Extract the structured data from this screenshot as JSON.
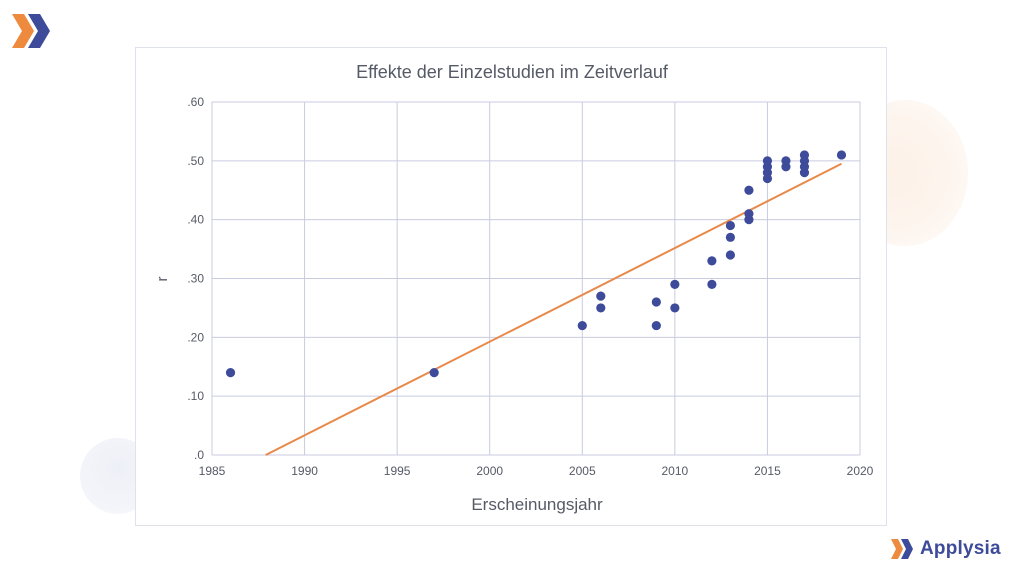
{
  "brand": {
    "name": "Applysia",
    "colors": {
      "orange": "#ee8a3e",
      "navy": "#3d4b9a"
    },
    "logo_icon": "double-chevron-logo-icon"
  },
  "chart_data": {
    "type": "scatter",
    "title": "Effekte der Einzelstudien im Zeitverlauf",
    "xlabel": "Erscheinungsjahr",
    "ylabel": "r",
    "xlim": [
      1985,
      2020
    ],
    "ylim": [
      0,
      0.6
    ],
    "xticks": [
      1985,
      1990,
      1995,
      2000,
      2005,
      2010,
      2015,
      2020
    ],
    "xtick_labels": [
      "1985",
      "1990",
      "1995",
      "2000",
      "2005",
      "2010",
      "2015",
      "2020"
    ],
    "yticks": [
      0,
      0.1,
      0.2,
      0.3,
      0.4,
      0.5,
      0.6
    ],
    "ytick_labels": [
      ".0",
      ".10",
      ".20",
      ".30",
      ".40",
      ".50",
      ".60"
    ],
    "grid": true,
    "points": [
      [
        1986,
        0.14
      ],
      [
        1997,
        0.14
      ],
      [
        2005,
        0.22
      ],
      [
        2006,
        0.27
      ],
      [
        2006,
        0.25
      ],
      [
        2009,
        0.26
      ],
      [
        2009,
        0.22
      ],
      [
        2010,
        0.29
      ],
      [
        2010,
        0.25
      ],
      [
        2012,
        0.33
      ],
      [
        2012,
        0.29
      ],
      [
        2013,
        0.39
      ],
      [
        2013,
        0.37
      ],
      [
        2013,
        0.34
      ],
      [
        2014,
        0.45
      ],
      [
        2014,
        0.41
      ],
      [
        2014,
        0.4
      ],
      [
        2015,
        0.5
      ],
      [
        2015,
        0.49
      ],
      [
        2015,
        0.48
      ],
      [
        2015,
        0.47
      ],
      [
        2016,
        0.5
      ],
      [
        2016,
        0.49
      ],
      [
        2017,
        0.51
      ],
      [
        2017,
        0.5
      ],
      [
        2017,
        0.49
      ],
      [
        2017,
        0.48
      ],
      [
        2019,
        0.51
      ]
    ],
    "trendline": {
      "x": [
        1987.9,
        2019
      ],
      "y": [
        0.0,
        0.495
      ]
    },
    "colors": {
      "points": "#3d4b9a",
      "trendline": "#e8894a",
      "grid": "#c9cbe0"
    }
  }
}
